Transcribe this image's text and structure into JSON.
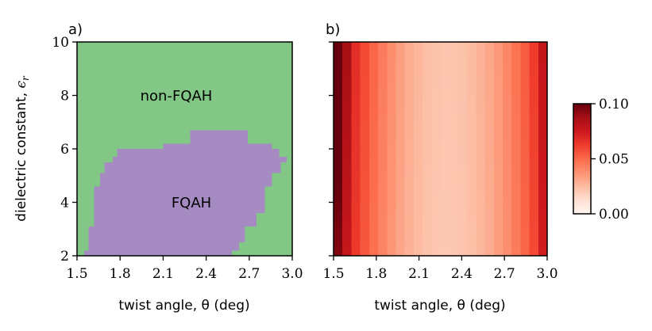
{
  "chart_data": [
    {
      "panel": "a)",
      "type": "heatmap",
      "xlabel": "twist angle, θ (deg)",
      "ylabel": "dielectric constant, ",
      "ylabel_symbol": "ϵ",
      "ylabel_subscript": "r",
      "xlim": [
        1.5,
        3.0
      ],
      "ylim": [
        2,
        10
      ],
      "xticks": [
        "1.5",
        "1.8",
        "2.1",
        "2.4",
        "2.7",
        "3.0"
      ],
      "yticks": [
        "2",
        "4",
        "6",
        "8",
        "10"
      ],
      "grid": false,
      "regions": {
        "outer_label": "non-FQAH",
        "inner_label": "FQAH",
        "outer_color": "#82c785",
        "inner_color": "#a68bc3"
      },
      "fqah_rows": [
        {
          "y0": 2.0,
          "y1": 2.2,
          "x0": 1.55,
          "x1": 2.58
        },
        {
          "y0": 2.2,
          "y1": 2.5,
          "x0": 1.58,
          "x1": 2.63
        },
        {
          "y0": 2.5,
          "y1": 3.1,
          "x0": 1.58,
          "x1": 2.67
        },
        {
          "y0": 3.1,
          "y1": 3.6,
          "x0": 1.62,
          "x1": 2.75
        },
        {
          "y0": 3.6,
          "y1": 4.6,
          "x0": 1.62,
          "x1": 2.81
        },
        {
          "y0": 4.6,
          "y1": 5.1,
          "x0": 1.66,
          "x1": 2.86
        },
        {
          "y0": 5.1,
          "y1": 5.5,
          "x0": 1.69,
          "x1": 2.92
        },
        {
          "y0": 5.5,
          "y1": 5.7,
          "x0": 1.75,
          "x1": 2.96
        },
        {
          "y0": 5.7,
          "y1": 6.0,
          "x0": 1.78,
          "x1": 2.91
        },
        {
          "y0": 6.0,
          "y1": 6.2,
          "x0": 2.1,
          "x1": 2.86
        },
        {
          "y0": 6.2,
          "y1": 6.7,
          "x0": 2.29,
          "x1": 2.69
        }
      ]
    },
    {
      "panel": "b)",
      "type": "heatmap",
      "xlabel": "twist angle, θ (deg)",
      "xlim": [
        1.5,
        3.0
      ],
      "ylim": [
        2,
        10
      ],
      "xticks": [
        "1.5",
        "1.8",
        "2.1",
        "2.4",
        "2.7",
        "3.0"
      ],
      "grid": false,
      "colormap": "Reds",
      "x_centers": [
        1.531,
        1.594,
        1.656,
        1.719,
        1.781,
        1.844,
        1.906,
        1.969,
        2.031,
        2.094,
        2.156,
        2.219,
        2.281,
        2.344,
        2.406,
        2.469,
        2.531,
        2.594,
        2.656,
        2.719,
        2.781,
        2.844,
        2.906,
        2.969
      ],
      "y_centers": [
        2.167,
        2.5,
        2.833,
        3.167,
        3.5,
        3.833,
        4.167,
        4.5,
        4.833,
        5.167,
        5.5,
        5.833,
        6.167,
        6.5,
        6.833,
        7.167,
        7.5,
        7.833,
        8.167,
        8.5,
        8.833,
        9.167,
        9.5,
        9.833
      ],
      "colorbar": {
        "min": 0.0,
        "max": 0.1,
        "ticks": [
          "0.00",
          "0.05",
          "0.10"
        ]
      }
    }
  ]
}
